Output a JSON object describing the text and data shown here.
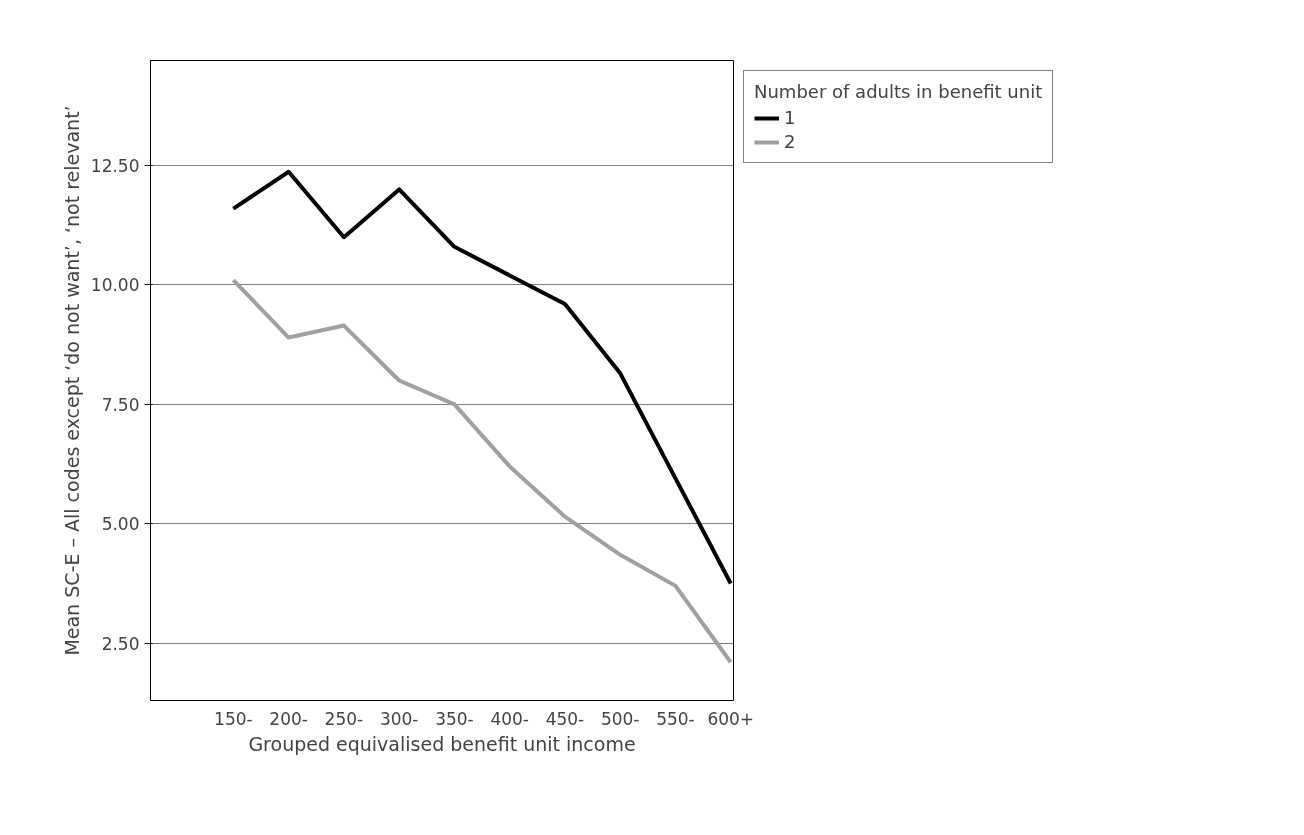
{
  "chart_data": {
    "type": "line",
    "xlabel": "Grouped equivalised benefit unit income",
    "ylabel": "Mean SC-E – All codes except ‘do not want’, ‘not relevant’",
    "legend_title": "Number of adults in benefit unit",
    "categories": [
      "150-",
      "200-",
      "250-",
      "300-",
      "350-",
      "400-",
      "450-",
      "500-",
      "550-",
      "600+"
    ],
    "series": [
      {
        "name": "1",
        "color": "#000000",
        "values": [
          11.6,
          12.37,
          11.0,
          12.0,
          10.8,
          10.2,
          9.6,
          8.15,
          5.95,
          3.75
        ]
      },
      {
        "name": "2",
        "color": "#a0a0a0",
        "values": [
          10.1,
          8.9,
          9.15,
          8.0,
          7.5,
          6.2,
          5.15,
          4.35,
          3.7,
          2.1
        ]
      }
    ],
    "ylim": [
      1.3,
      14.7
    ],
    "yticks": [
      {
        "value": 2.5,
        "label": "2.50"
      },
      {
        "value": 5,
        "label": "5.00"
      },
      {
        "value": 7.5,
        "label": "7.50"
      },
      {
        "value": 10,
        "label": "10.00"
      },
      {
        "value": 12.5,
        "label": "12.50"
      }
    ],
    "grid": "y",
    "legend": "top right",
    "line_style": "solid",
    "marker": "none"
  }
}
